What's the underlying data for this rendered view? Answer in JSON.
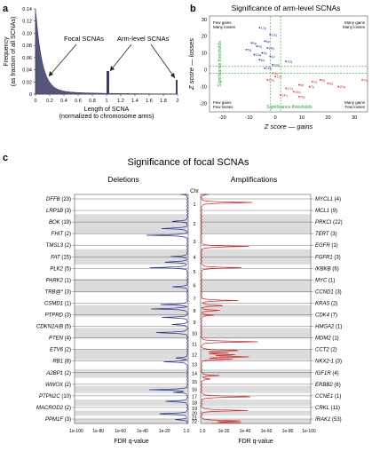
{
  "panel_a": {
    "letter": "a",
    "ylabel_1": "Frequency",
    "ylabel_2": "(as fraction of all SCNAs)",
    "xlabel_1": "Length of SCNA",
    "xlabel_2": "(normalized to chromosome arms)",
    "annotation_focal": "Focal SCNAs",
    "annotation_arm": "Arm-level SCNAs",
    "yticks": [
      "0.14",
      "0.12",
      "0.10",
      "0.08",
      "0.06",
      "0.04",
      "0.02",
      "0"
    ],
    "xticks": [
      "0",
      "0.2",
      "0.4",
      "0.6",
      "0.8",
      "1",
      "1.2",
      "1.4",
      "1.6",
      "1.8",
      "2"
    ]
  },
  "panel_b": {
    "letter": "b",
    "title": "Significance of arm-level SCNAs",
    "xlabel": "Z score — gains",
    "ylabel": "Z score — losses",
    "q_tl_1": "Few gains",
    "q_tl_2": "Many losses",
    "q_tr_1": "Many gains",
    "q_tr_2": "Many losses",
    "q_bl_1": "Few gains",
    "q_bl_2": "Few losses",
    "q_br_1": "Many gains",
    "q_br_2": "Few losses",
    "threshold_v": "Significance thresholds",
    "threshold_h": "Significance thresholds",
    "xticks": [
      "-20",
      "-10",
      "0",
      "10",
      "20",
      "30"
    ],
    "yticks": [
      "30",
      "20",
      "10",
      "0",
      "-10",
      "-20"
    ],
    "points": [
      {
        "label": "17p",
        "x": -6,
        "y": 25
      },
      {
        "label": "13q",
        "x": -2,
        "y": 21
      },
      {
        "label": "8p",
        "x": -4,
        "y": 17
      },
      {
        "label": "9p",
        "x": -9,
        "y": 16
      },
      {
        "label": "4q",
        "x": -7,
        "y": 14
      },
      {
        "label": "18q",
        "x": -3,
        "y": 13
      },
      {
        "label": "5q",
        "x": -11,
        "y": 12
      },
      {
        "label": "3p",
        "x": -5,
        "y": 10
      },
      {
        "label": "10q",
        "x": -8,
        "y": 9
      },
      {
        "label": "1p",
        "x": -2,
        "y": 8
      },
      {
        "label": "6q",
        "x": -6,
        "y": 6
      },
      {
        "label": "11q",
        "x": 4,
        "y": 5
      },
      {
        "label": "19p",
        "x": -1,
        "y": 3
      },
      {
        "label": "22q",
        "x": -4,
        "y": 1
      },
      {
        "label": "2q",
        "x": -1,
        "y": -2
      },
      {
        "label": "12p",
        "x": 0,
        "y": -4
      },
      {
        "label": "15q",
        "x": -3,
        "y": -6
      },
      {
        "label": "1q",
        "x": 14,
        "y": -7
      },
      {
        "label": "3q",
        "x": 20,
        "y": -8
      },
      {
        "label": "8q",
        "x": 17,
        "y": -6
      },
      {
        "label": "5p",
        "x": 9,
        "y": -9
      },
      {
        "label": "7p",
        "x": 13,
        "y": -10
      },
      {
        "label": "20q",
        "x": 24,
        "y": -10
      },
      {
        "label": "17q",
        "x": 4,
        "y": -11
      },
      {
        "label": "7q",
        "x": 33,
        "y": -6
      },
      {
        "label": "19q",
        "x": 7,
        "y": -13
      },
      {
        "label": "20p",
        "x": 9,
        "y": -16
      },
      {
        "label": "14q",
        "x": 2,
        "y": -15
      }
    ]
  },
  "panel_c": {
    "letter": "c",
    "title": "Significance of focal SCNAs",
    "deletions": "Deletions",
    "amplifications": "Amplifications",
    "chr": "Chr",
    "xlabel_left": "FDR q-value",
    "xlabel_right": "FDR q-value",
    "xticks_left": [
      "1e-100",
      "1e-80",
      "1e-60",
      "1e-40",
      "1e-20",
      "1.0"
    ],
    "xticks_right": [
      "1.0",
      "1e-20",
      "1e-40",
      "1e-60",
      "1e-80",
      "1e-100"
    ],
    "chromosomes": [
      "1",
      "2",
      "3",
      "4",
      "5",
      "6",
      "7",
      "8",
      "9",
      "10",
      "11",
      "12",
      "13",
      "14",
      "15",
      "16",
      "17",
      "18",
      "19",
      "20",
      "21",
      "22"
    ],
    "deletion_genes": [
      {
        "name": "DFFB",
        "count": "(23)",
        "chr_index": 0
      },
      {
        "name": "LRP1B",
        "count": "(3)",
        "chr_index": 1
      },
      {
        "name": "BOK",
        "count": "(19)",
        "chr_index": 1
      },
      {
        "name": "FHIT",
        "count": "(2)",
        "chr_index": 2
      },
      {
        "name": "TMSL3",
        "count": "(2)",
        "chr_index": 3
      },
      {
        "name": "FAT",
        "count": "(15)",
        "chr_index": 3
      },
      {
        "name": "PLK2",
        "count": "(5)",
        "chr_index": 4
      },
      {
        "name": "PARK2",
        "count": "(1)",
        "chr_index": 5
      },
      {
        "name": "TRB@*",
        "count": "(3)",
        "chr_index": 6
      },
      {
        "name": "CSMD1",
        "count": "(1)",
        "chr_index": 7
      },
      {
        "name": "PTPRD",
        "count": "(3)",
        "chr_index": 8
      },
      {
        "name": "CDKN2A/B",
        "count": "(5)",
        "chr_index": 8
      },
      {
        "name": "PTEN",
        "count": "(4)",
        "chr_index": 9
      },
      {
        "name": "ETV6",
        "count": "(2)",
        "chr_index": 11
      },
      {
        "name": "RB1",
        "count": "(8)",
        "chr_index": 12
      },
      {
        "name": "A2BP1",
        "count": "(2)",
        "chr_index": 15
      },
      {
        "name": "WWOX",
        "count": "(2)",
        "chr_index": 15
      },
      {
        "name": "PTPN2C",
        "count": "(10)",
        "chr_index": 17
      },
      {
        "name": "MACROD2",
        "count": "(2)",
        "chr_index": 19
      },
      {
        "name": "PPM1F",
        "count": "(3)",
        "chr_index": 21
      }
    ],
    "amplification_genes": [
      {
        "name": "MYCL1",
        "count": "(4)",
        "chr_index": 0
      },
      {
        "name": "MCL1",
        "count": "(9)",
        "chr_index": 0
      },
      {
        "name": "PRKCI",
        "count": "(22)",
        "chr_index": 2
      },
      {
        "name": "TERT",
        "count": "(3)",
        "chr_index": 4
      },
      {
        "name": "EGFR",
        "count": "(1)",
        "chr_index": 6
      },
      {
        "name": "FGFR1",
        "count": "(3)",
        "chr_index": 7
      },
      {
        "name": "IKBKB",
        "count": "(6)",
        "chr_index": 7
      },
      {
        "name": "MYC",
        "count": "(1)",
        "chr_index": 7
      },
      {
        "name": "CCND1",
        "count": "(3)",
        "chr_index": 10
      },
      {
        "name": "KRAS",
        "count": "(2)",
        "chr_index": 11
      },
      {
        "name": "CDK4",
        "count": "(7)",
        "chr_index": 11
      },
      {
        "name": "HMGA2",
        "count": "(1)",
        "chr_index": 11
      },
      {
        "name": "MDM2",
        "count": "(1)",
        "chr_index": 11
      },
      {
        "name": "CCT2",
        "count": "(2)",
        "chr_index": 11
      },
      {
        "name": "NKX2-1",
        "count": "(3)",
        "chr_index": 13
      },
      {
        "name": "IGF1R",
        "count": "(4)",
        "chr_index": 14
      },
      {
        "name": "ERBB2",
        "count": "(6)",
        "chr_index": 16
      },
      {
        "name": "CCNE1",
        "count": "(1)",
        "chr_index": 18
      },
      {
        "name": "CRKL",
        "count": "(11)",
        "chr_index": 21
      },
      {
        "name": "IRAK1",
        "count": "(53)",
        "chr_index": 21
      }
    ],
    "colors": {
      "deletion": "#2b3a8f",
      "amplification": "#d42a2a",
      "band": "#dcdcdc",
      "gene_line": "#3a3a3a"
    }
  }
}
